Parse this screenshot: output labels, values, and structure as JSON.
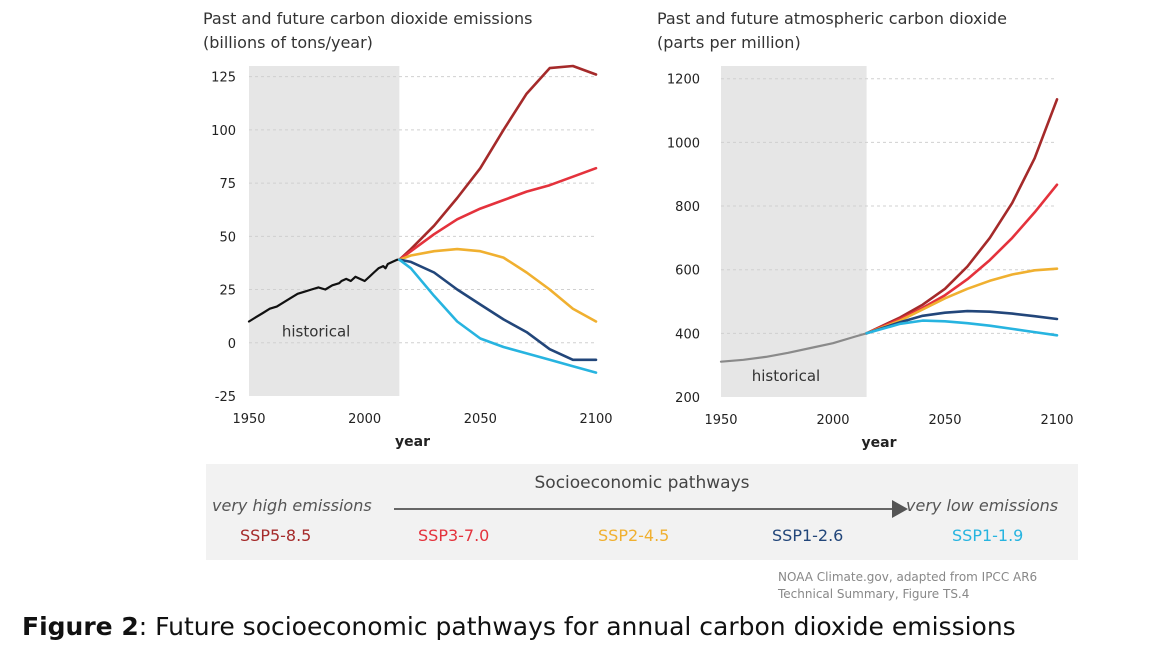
{
  "colors": {
    "historical": "#111111",
    "historical_conc": "#8a8a8a",
    "ssp5": "#a52a2a",
    "ssp3": "#e4323c",
    "ssp2": "#f0b030",
    "ssp126": "#22467a",
    "ssp119": "#27b4e0",
    "shade": "#e6e6e6"
  },
  "legend": {
    "title": "Socioeconomic pathways",
    "left": "very high emissions",
    "right": "very low emissions",
    "items": [
      "SSP5-8.5",
      "SSP3-7.0",
      "SSP2-4.5",
      "SSP1-2.6",
      "SSP1-1.9"
    ]
  },
  "credit": {
    "line1": "NOAA Climate.gov, adapted from IPCC AR6",
    "line2": "Technical Summary, Figure TS.4"
  },
  "caption": {
    "bold": "Figure 2",
    "text": ": Future socioeconomic pathways for annual carbon dioxide emissions"
  },
  "chart_data": [
    {
      "type": "line",
      "title": "Past and future carbon dioxide emissions",
      "subtitle": "(billions of tons/year)",
      "xlabel": "year",
      "ylabel": "",
      "xlim": [
        1950,
        2100
      ],
      "ylim": [
        -25,
        130
      ],
      "xticks": [
        1950,
        2000,
        2050,
        2100
      ],
      "yticks": [
        125,
        100,
        75,
        50,
        25,
        0,
        -25
      ],
      "historical_shade": [
        1950,
        2015
      ],
      "annotation": "historical",
      "series": [
        {
          "key": "historical",
          "x": [
            1950,
            1953,
            1956,
            1959,
            1962,
            1965,
            1968,
            1971,
            1974,
            1977,
            1980,
            1983,
            1986,
            1989,
            1990,
            1992,
            1994,
            1996,
            1998,
            2000,
            2002,
            2004,
            2006,
            2008,
            2009,
            2010,
            2012,
            2014,
            2015
          ],
          "y": [
            10,
            12,
            14,
            16,
            17,
            19,
            21,
            23,
            24,
            25,
            26,
            25,
            27,
            28,
            29,
            30,
            29,
            31,
            30,
            29,
            31,
            33,
            35,
            36,
            35,
            37,
            38,
            39,
            39
          ]
        },
        {
          "key": "ssp5",
          "name": "SSP5-8.5",
          "x": [
            2015,
            2020,
            2030,
            2040,
            2050,
            2060,
            2070,
            2080,
            2090,
            2100
          ],
          "y": [
            39,
            44,
            55,
            68,
            82,
            100,
            117,
            129,
            130,
            126
          ]
        },
        {
          "key": "ssp3",
          "name": "SSP3-7.0",
          "x": [
            2015,
            2020,
            2030,
            2040,
            2050,
            2060,
            2070,
            2080,
            2090,
            2100
          ],
          "y": [
            39,
            43,
            51,
            58,
            63,
            67,
            71,
            74,
            78,
            82
          ]
        },
        {
          "key": "ssp2",
          "name": "SSP2-4.5",
          "x": [
            2015,
            2020,
            2030,
            2040,
            2050,
            2060,
            2070,
            2080,
            2090,
            2100
          ],
          "y": [
            39,
            41,
            43,
            44,
            43,
            40,
            33,
            25,
            16,
            10
          ]
        },
        {
          "key": "ssp126",
          "name": "SSP1-2.6",
          "x": [
            2015,
            2020,
            2030,
            2040,
            2050,
            2060,
            2070,
            2080,
            2090,
            2100
          ],
          "y": [
            39,
            38,
            33,
            25,
            18,
            11,
            5,
            -3,
            -8,
            -8
          ]
        },
        {
          "key": "ssp119",
          "name": "SSP1-1.9",
          "x": [
            2015,
            2020,
            2030,
            2040,
            2050,
            2060,
            2070,
            2080,
            2090,
            2100
          ],
          "y": [
            39,
            35,
            22,
            10,
            2,
            -2,
            -5,
            -8,
            -11,
            -14
          ]
        }
      ]
    },
    {
      "type": "line",
      "title": "Past and future atmospheric carbon dioxide",
      "subtitle": "(parts per million)",
      "xlabel": "year",
      "ylabel": "",
      "xlim": [
        1950,
        2100
      ],
      "ylim": [
        200,
        1240
      ],
      "xticks": [
        1950,
        2000,
        2050,
        2100
      ],
      "yticks": [
        1200,
        1000,
        800,
        600,
        400,
        200
      ],
      "historical_shade": [
        1950,
        2015
      ],
      "annotation": "historical",
      "series": [
        {
          "key": "historical_conc",
          "x": [
            1950,
            1960,
            1970,
            1980,
            1990,
            2000,
            2010,
            2015
          ],
          "y": [
            311,
            317,
            326,
            339,
            354,
            369,
            390,
            400
          ]
        },
        {
          "key": "ssp5",
          "name": "SSP5-8.5",
          "x": [
            2015,
            2030,
            2040,
            2050,
            2060,
            2070,
            2080,
            2090,
            2100
          ],
          "y": [
            400,
            450,
            490,
            540,
            610,
            700,
            810,
            950,
            1135
          ]
        },
        {
          "key": "ssp3",
          "name": "SSP3-7.0",
          "x": [
            2015,
            2030,
            2040,
            2050,
            2060,
            2070,
            2080,
            2090,
            2100
          ],
          "y": [
            400,
            445,
            480,
            520,
            570,
            630,
            700,
            780,
            867
          ]
        },
        {
          "key": "ssp2",
          "name": "SSP2-4.5",
          "x": [
            2015,
            2030,
            2040,
            2050,
            2060,
            2070,
            2080,
            2090,
            2100
          ],
          "y": [
            400,
            440,
            475,
            510,
            540,
            565,
            585,
            598,
            603
          ]
        },
        {
          "key": "ssp126",
          "name": "SSP1-2.6",
          "x": [
            2015,
            2030,
            2040,
            2050,
            2060,
            2070,
            2080,
            2090,
            2100
          ],
          "y": [
            400,
            435,
            455,
            465,
            470,
            468,
            462,
            454,
            445
          ]
        },
        {
          "key": "ssp119",
          "name": "SSP1-1.9",
          "x": [
            2015,
            2030,
            2040,
            2050,
            2060,
            2070,
            2080,
            2090,
            2100
          ],
          "y": [
            400,
            430,
            440,
            438,
            432,
            424,
            414,
            404,
            394
          ]
        }
      ]
    }
  ]
}
